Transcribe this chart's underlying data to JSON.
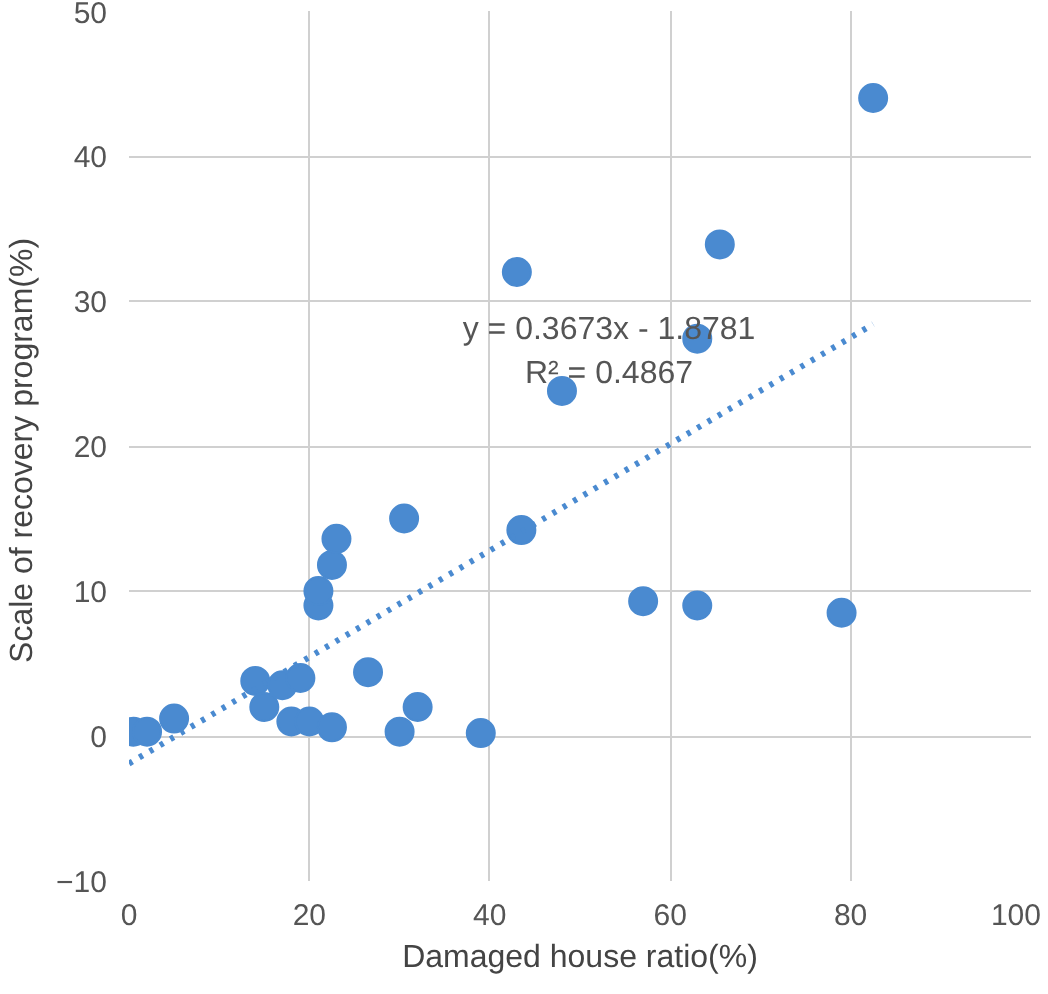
{
  "chart_data": {
    "type": "scatter",
    "xlabel": "Damaged house ratio(%)",
    "ylabel": "Scale of recovery  program(%)",
    "xlim": [
      0,
      100
    ],
    "xticks": [
      0,
      20,
      40,
      60,
      80,
      100
    ],
    "ylim": [
      -10,
      50
    ],
    "yticks": [
      -10,
      0,
      10,
      20,
      30,
      40,
      50
    ],
    "grid": true,
    "annotations": [
      "y = 0.3673x - 1.8781",
      "R² = 0.4867"
    ],
    "series": [
      {
        "marker": "circle",
        "color": "#4a8ad0",
        "x": [
          0.5,
          2,
          5,
          14,
          15,
          17,
          18,
          19,
          20,
          21,
          21,
          22.5,
          23,
          22.5,
          26.5,
          30.5,
          30,
          32,
          39,
          43,
          43.5,
          48,
          57,
          63,
          63,
          65.5,
          79,
          82.5
        ],
        "values": [
          0.3,
          0.3,
          1.2,
          3.8,
          2,
          3.5,
          1,
          4,
          1,
          9,
          10,
          11.8,
          13.6,
          0.6,
          4.4,
          15,
          0.3,
          2,
          0.2,
          32,
          14.2,
          23.8,
          9.3,
          27.4,
          9,
          33.9,
          8.5,
          44
        ]
      },
      {
        "type": "line",
        "marker": "none",
        "color": "#4a8ad0",
        "line_style": "dotted",
        "x": [
          0,
          82.5
        ],
        "values": [
          -1.9,
          28.4
        ]
      }
    ]
  }
}
